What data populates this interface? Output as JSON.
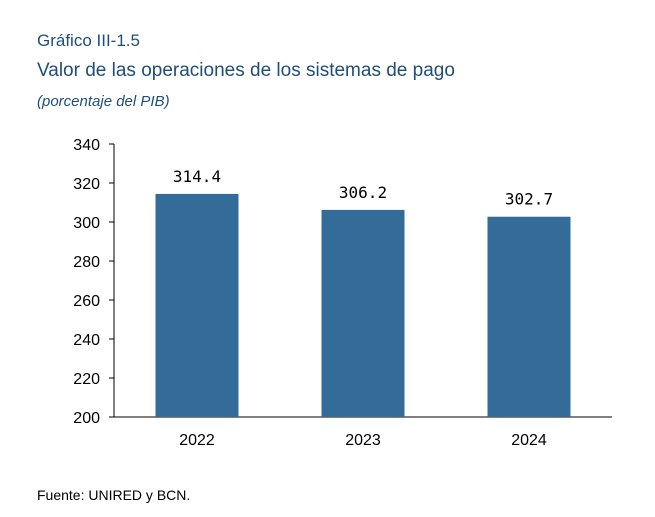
{
  "header": {
    "label": "Gráfico III-1.5",
    "title": "Valor de las operaciones de los sistemas de pago",
    "subtitle": "(porcentaje del PIB)"
  },
  "source": "Fuente: UNIRED y BCN.",
  "chart_data": {
    "type": "bar",
    "categories": [
      "2022",
      "2023",
      "2024"
    ],
    "values": [
      314.4,
      306.2,
      302.7
    ],
    "data_labels": [
      "314.4",
      "306.2",
      "302.7"
    ],
    "ylim": [
      200,
      340
    ],
    "yticks": [
      200,
      220,
      240,
      260,
      280,
      300,
      320,
      340
    ],
    "bar_color": "#336b99",
    "grid": false,
    "legend": "none",
    "xlabel": "",
    "ylabel": ""
  }
}
